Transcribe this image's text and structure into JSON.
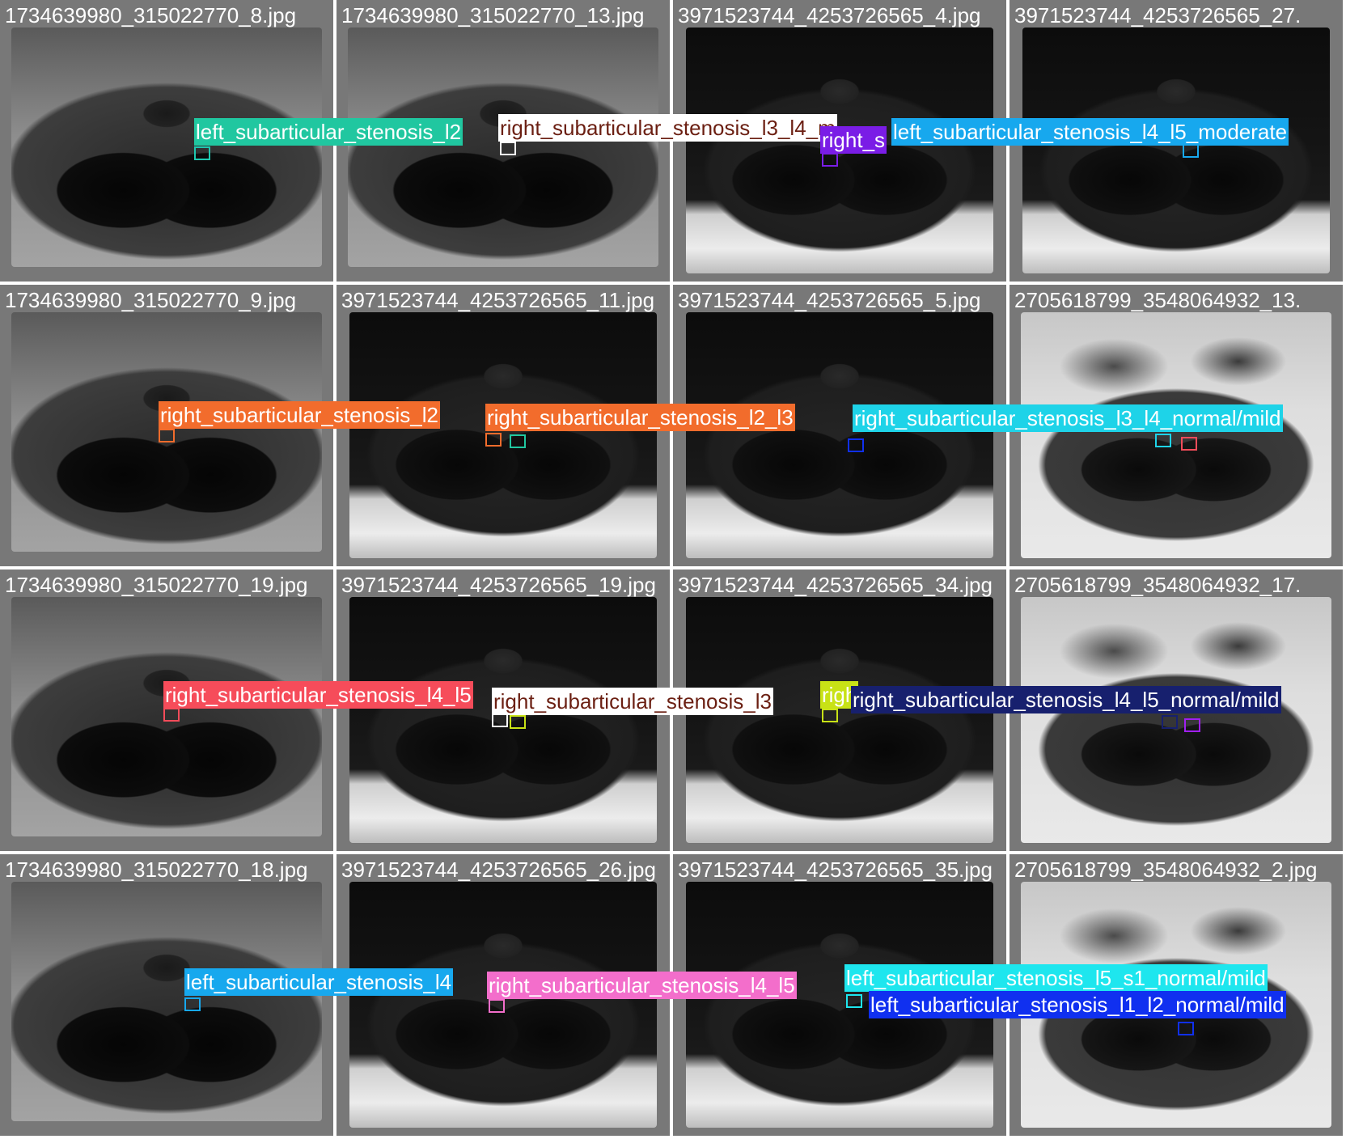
{
  "grid": [
    {
      "file": "1734639980_315022770_8.jpg",
      "tone": "mid"
    },
    {
      "file": "1734639980_315022770_13.jpg",
      "tone": "mid"
    },
    {
      "file": "3971523744_4253726565_4.jpg",
      "tone": "dark"
    },
    {
      "file": "3971523744_4253726565_27.",
      "tone": "dark"
    },
    {
      "file": "1734639980_315022770_9.jpg",
      "tone": "mid"
    },
    {
      "file": "3971523744_4253726565_11.jpg",
      "tone": "dark"
    },
    {
      "file": "3971523744_4253726565_5.jpg",
      "tone": "dark"
    },
    {
      "file": "2705618799_3548064932_13.",
      "tone": "bright"
    },
    {
      "file": "1734639980_315022770_19.jpg",
      "tone": "mid"
    },
    {
      "file": "3971523744_4253726565_19.jpg",
      "tone": "dark"
    },
    {
      "file": "3971523744_4253726565_34.jpg",
      "tone": "dark"
    },
    {
      "file": "2705618799_3548064932_17.",
      "tone": "bright"
    },
    {
      "file": "1734639980_315022770_18.jpg",
      "tone": "mid"
    },
    {
      "file": "3971523744_4253726565_26.jpg",
      "tone": "dark"
    },
    {
      "file": "3971523744_4253726565_35.jpg",
      "tone": "dark"
    },
    {
      "file": "2705618799_3548064932_2.jpg",
      "tone": "bright"
    }
  ],
  "detections": [
    {
      "text": "left_subarticular_stenosis_l2",
      "bg": "#20c7a0",
      "fg": "#ffffff"
    },
    {
      "text": "right_subarticular_stenosis_l3_l4_m",
      "bg": "#ffffff",
      "fg": "#6b1f12"
    },
    {
      "text": "right_s",
      "bg": "#7a1de6",
      "fg": "#ffffff"
    },
    {
      "text": "left_subarticular_stenosis_l4_l5_moderate",
      "bg": "#17a8ee",
      "fg": "#ffffff"
    },
    {
      "text": "right_subarticular_stenosis_l2",
      "bg": "#f26c2c",
      "fg": "#ffffff"
    },
    {
      "text": "right_subarticular_stenosis_l2_l3",
      "bg": "#f26c2c",
      "fg": "#ffffff"
    },
    {
      "text": "right_subarticular_stenosis_l3_l4_normal/mild",
      "bg": "#1ed3e8",
      "fg": "#ffffff"
    },
    {
      "text": "right_subarticular_stenosis_l4_l5",
      "bg": "#f64c5a",
      "fg": "#ffffff"
    },
    {
      "text": "right_subarticular_stenosis_l3",
      "bg": "#ffffff",
      "fg": "#6b1f12"
    },
    {
      "text": "righ",
      "bg": "#c8e216",
      "fg": "#ffffff"
    },
    {
      "text": "right_subarticular_stenosis_l4_l5_normal/mild",
      "bg": "#17206e",
      "fg": "#ffffff"
    },
    {
      "text": "left_subarticular_stenosis_l4",
      "bg": "#17a8ee",
      "fg": "#ffffff"
    },
    {
      "text": "right_subarticular_stenosis_l4_l5",
      "bg": "#f36ecb",
      "fg": "#ffffff"
    },
    {
      "text": "left_subarticular_stenosis_l5_s1_normal/mild",
      "bg": "#1ee6ee",
      "fg": "#ffffff"
    },
    {
      "text": "left_subarticular_stenosis_l1_l2_normal/mild",
      "bg": "#1030f0",
      "fg": "#ffffff"
    }
  ],
  "boxes": [
    {
      "color": "#1ec8b0"
    },
    {
      "color": "#ffffff"
    },
    {
      "color": "#7a1de6"
    },
    {
      "color": "#17a8ee"
    },
    {
      "color": "#f26c2c"
    },
    {
      "color": "#f26c2c"
    },
    {
      "color": "#20c7a0"
    },
    {
      "color": "#1030f0"
    },
    {
      "color": "#1ed3e8"
    },
    {
      "color": "#f64c5a"
    },
    {
      "color": "#f64c5a"
    },
    {
      "color": "#ffffff"
    },
    {
      "color": "#c8e216"
    },
    {
      "color": "#c8e216"
    },
    {
      "color": "#17206e"
    },
    {
      "color": "#a020f0"
    },
    {
      "color": "#17a8ee"
    },
    {
      "color": "#f36ecb"
    },
    {
      "color": "#1ee6ee"
    },
    {
      "color": "#1030f0"
    }
  ]
}
